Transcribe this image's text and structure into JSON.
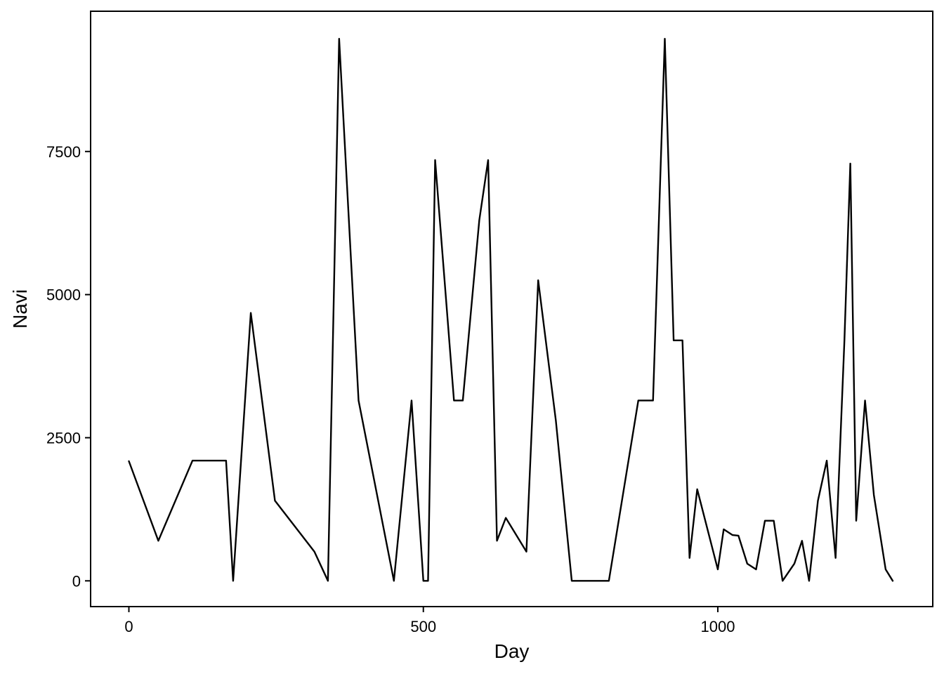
{
  "chart_data": {
    "type": "line",
    "title": "",
    "xlabel": "Day",
    "ylabel": "Navi",
    "xlim": [
      -65,
      1365
    ],
    "ylim": [
      -450,
      9950
    ],
    "x_ticks": [
      0,
      500,
      1000
    ],
    "y_ticks": [
      0,
      2500,
      5000,
      7500
    ],
    "grid": false,
    "legend": "none",
    "line_color": "#000000",
    "series": [
      {
        "x": [
          0,
          50,
          108,
          165,
          177,
          207,
          248,
          315,
          338,
          357,
          390,
          450,
          480,
          500,
          508,
          520,
          552,
          567,
          595,
          610,
          625,
          640,
          675,
          695,
          725,
          752,
          780,
          815,
          865,
          890,
          910,
          925,
          940,
          952,
          965,
          975,
          1000,
          1010,
          1025,
          1035,
          1050,
          1065,
          1080,
          1095,
          1110,
          1130,
          1143,
          1155,
          1170,
          1185,
          1200,
          1215,
          1225,
          1235,
          1250,
          1265,
          1285,
          1297
        ],
        "values": [
          2090,
          700,
          2100,
          2100,
          0,
          4680,
          1400,
          510,
          0,
          9470,
          3150,
          0,
          3150,
          0,
          0,
          7350,
          3150,
          3150,
          6300,
          7350,
          700,
          1100,
          510,
          5250,
          2800,
          0,
          0,
          0,
          3150,
          3150,
          9470,
          4200,
          4200,
          400,
          1600,
          1200,
          200,
          900,
          800,
          790,
          300,
          200,
          1050,
          1050,
          0,
          300,
          700,
          0,
          1400,
          2100,
          400,
          4200,
          7290,
          1050,
          3150,
          1500,
          200,
          0
        ]
      }
    ]
  }
}
